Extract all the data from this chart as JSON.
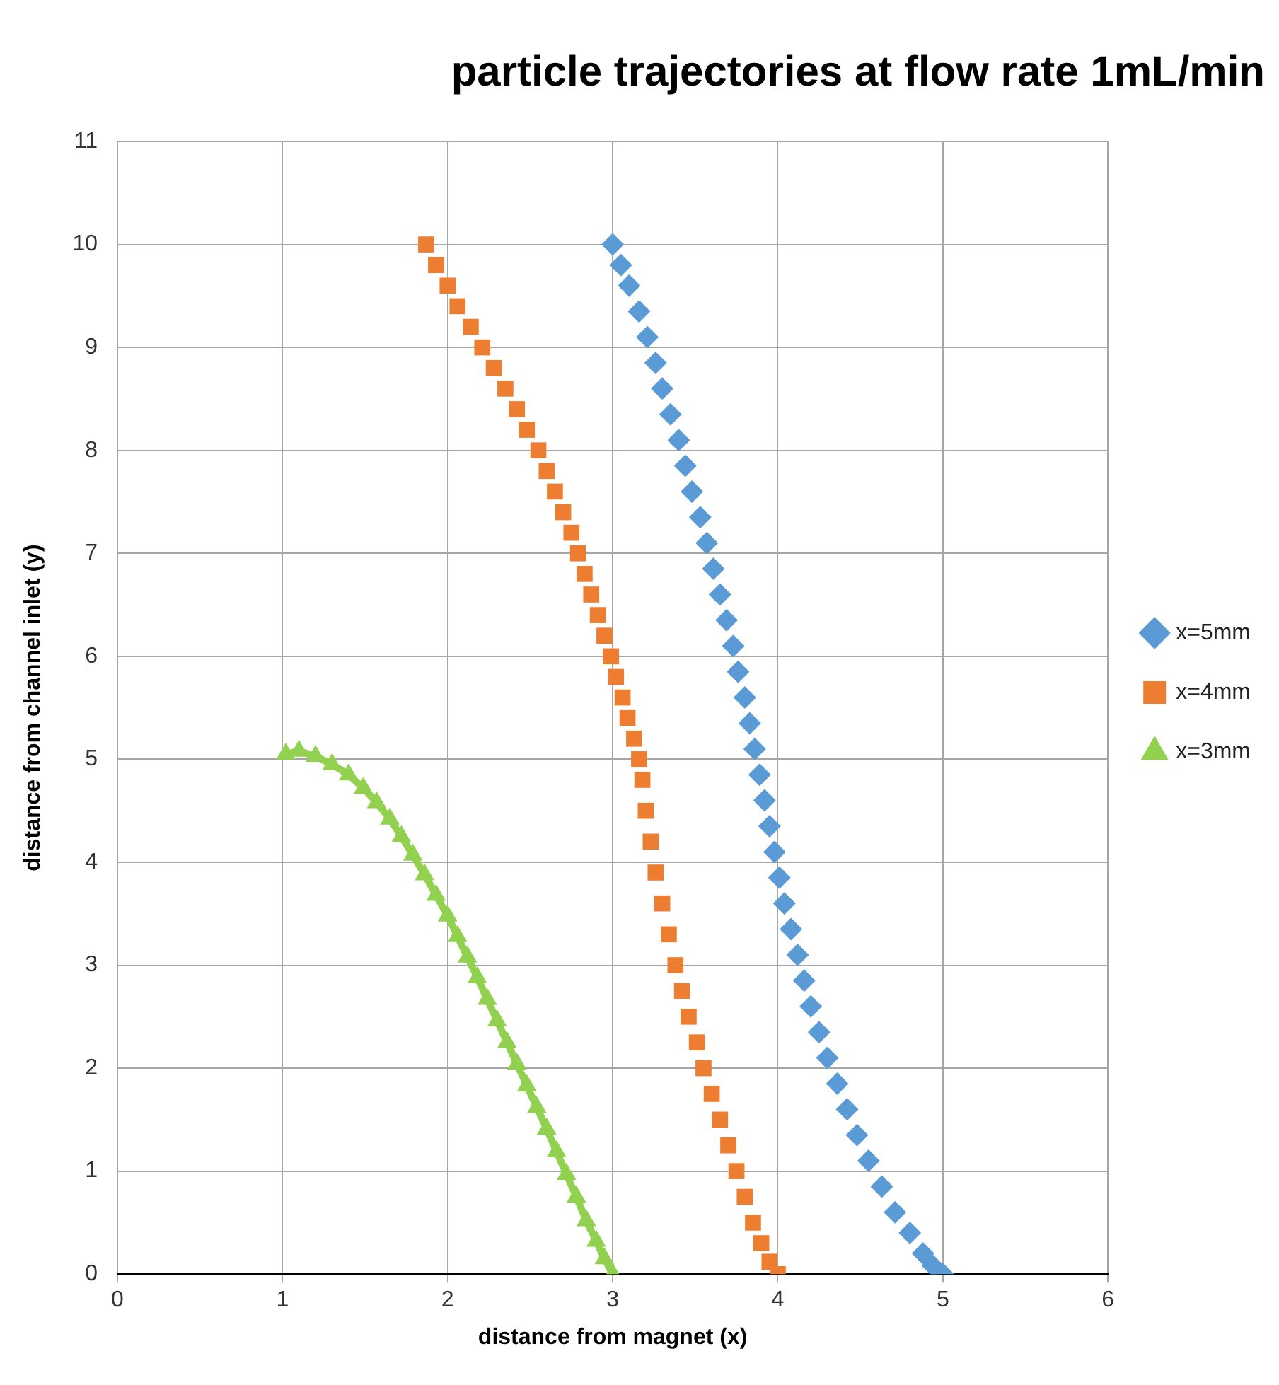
{
  "chart_data": {
    "type": "scatter",
    "title": "particle trajectories at flow rate 1mL/min",
    "xlabel": "distance from magnet (x)",
    "ylabel": "distance from channel inlet (y)",
    "xlim": [
      0,
      6
    ],
    "xticks": [
      0,
      1,
      2,
      3,
      4,
      5,
      6
    ],
    "ylim": [
      0,
      11
    ],
    "yticks": [
      0,
      1,
      2,
      3,
      4,
      5,
      6,
      7,
      8,
      9,
      10,
      11
    ],
    "grid": true,
    "legend": "right",
    "series": [
      {
        "name": "x=5mm",
        "color": "#5b9bd5",
        "marker": "diamond",
        "x": [
          3.0,
          3.05,
          3.1,
          3.16,
          3.21,
          3.26,
          3.3,
          3.35,
          3.4,
          3.44,
          3.48,
          3.53,
          3.57,
          3.61,
          3.65,
          3.69,
          3.73,
          3.76,
          3.8,
          3.83,
          3.86,
          3.89,
          3.92,
          3.95,
          3.98,
          4.01,
          4.04,
          4.08,
          4.12,
          4.16,
          4.2,
          4.25,
          4.3,
          4.36,
          4.42,
          4.48,
          4.55,
          4.63,
          4.71,
          4.8,
          4.88,
          4.94,
          5.0
        ],
        "values": [
          10.0,
          9.8,
          9.6,
          9.35,
          9.1,
          8.85,
          8.6,
          8.35,
          8.1,
          7.85,
          7.6,
          7.35,
          7.1,
          6.85,
          6.6,
          6.35,
          6.1,
          5.85,
          5.6,
          5.35,
          5.1,
          4.85,
          4.6,
          4.35,
          4.1,
          3.85,
          3.6,
          3.35,
          3.1,
          2.85,
          2.6,
          2.35,
          2.1,
          1.85,
          1.6,
          1.35,
          1.1,
          0.85,
          0.6,
          0.4,
          0.2,
          0.08,
          0.0
        ]
      },
      {
        "name": "x=4mm",
        "color": "#ed7d31",
        "marker": "square",
        "x": [
          1.87,
          1.93,
          2.0,
          2.06,
          2.14,
          2.21,
          2.28,
          2.35,
          2.42,
          2.48,
          2.55,
          2.6,
          2.65,
          2.7,
          2.75,
          2.79,
          2.83,
          2.87,
          2.91,
          2.95,
          2.99,
          3.02,
          3.06,
          3.09,
          3.13,
          3.16,
          3.18,
          3.2,
          3.23,
          3.26,
          3.3,
          3.34,
          3.38,
          3.42,
          3.46,
          3.51,
          3.55,
          3.6,
          3.65,
          3.7,
          3.75,
          3.8,
          3.85,
          3.9,
          3.95,
          4.0
        ],
        "values": [
          10.0,
          9.8,
          9.6,
          9.4,
          9.2,
          9.0,
          8.8,
          8.6,
          8.4,
          8.2,
          8.0,
          7.8,
          7.6,
          7.4,
          7.2,
          7.0,
          6.8,
          6.6,
          6.4,
          6.2,
          6.0,
          5.8,
          5.6,
          5.4,
          5.2,
          5.0,
          4.8,
          4.5,
          4.2,
          3.9,
          3.6,
          3.3,
          3.0,
          2.75,
          2.5,
          2.25,
          2.0,
          1.75,
          1.5,
          1.25,
          1.0,
          0.75,
          0.5,
          0.3,
          0.12,
          0.0
        ]
      },
      {
        "name": "x=3mm",
        "type": "line",
        "color": "#92d050",
        "marker": "triangle",
        "x": [
          1.02,
          1.1,
          1.2,
          1.3,
          1.4,
          1.49,
          1.57,
          1.65,
          1.72,
          1.79,
          1.86,
          1.93,
          2.0,
          2.06,
          2.12,
          2.18,
          2.24,
          2.3,
          2.36,
          2.42,
          2.48,
          2.54,
          2.6,
          2.66,
          2.72,
          2.78,
          2.84,
          2.9,
          2.95,
          3.0
        ],
        "values": [
          5.05,
          5.08,
          5.03,
          4.95,
          4.85,
          4.72,
          4.58,
          4.42,
          4.25,
          4.07,
          3.88,
          3.68,
          3.48,
          3.28,
          3.08,
          2.88,
          2.67,
          2.46,
          2.25,
          2.04,
          1.83,
          1.62,
          1.41,
          1.19,
          0.97,
          0.75,
          0.52,
          0.32,
          0.15,
          0.0
        ]
      }
    ]
  }
}
